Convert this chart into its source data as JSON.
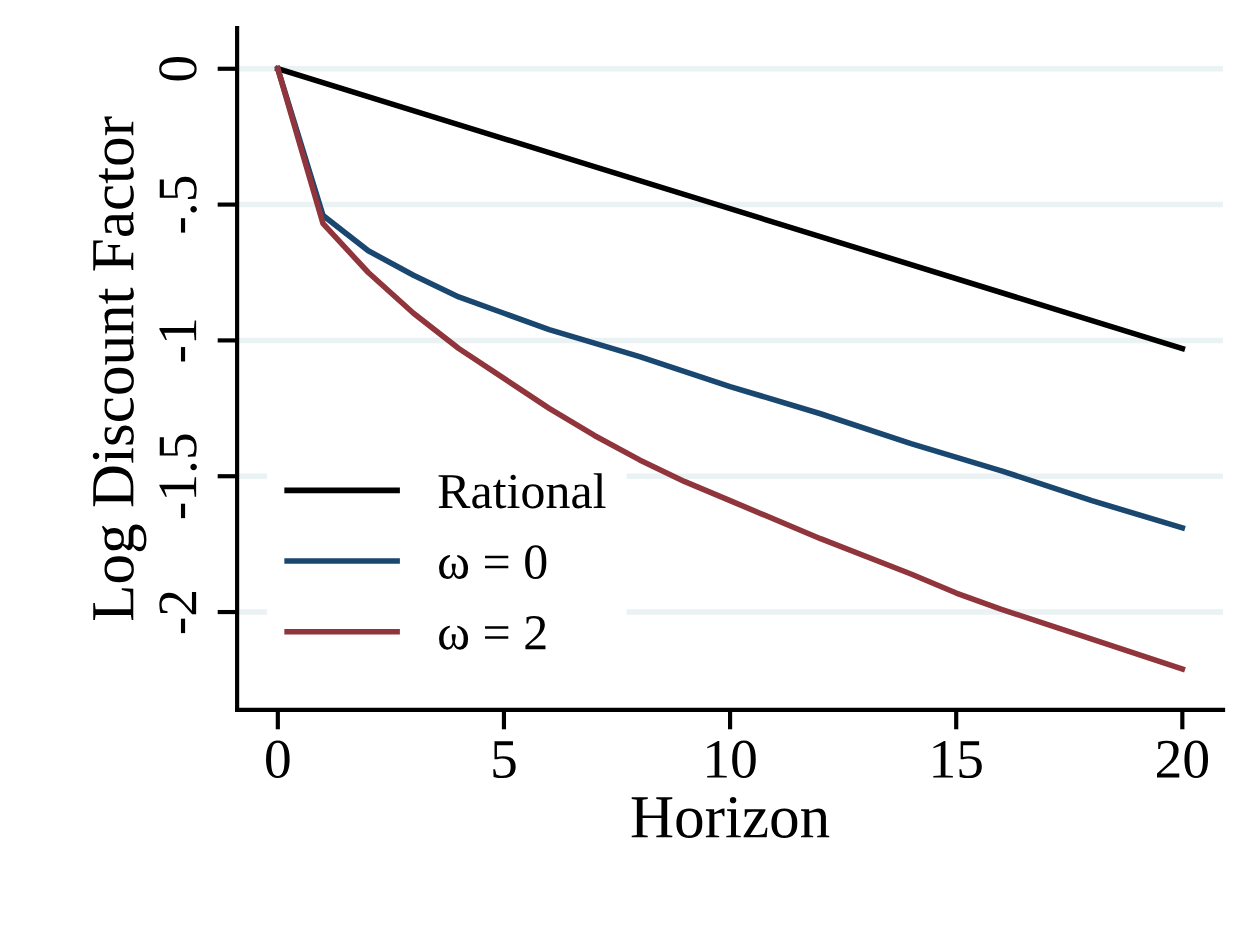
{
  "chart_data": {
    "type": "line",
    "xlabel": "Horizon",
    "ylabel": "Log Discount Factor",
    "xlim": [
      -0.9,
      20.9
    ],
    "xticks": [
      0,
      5,
      10,
      15,
      20
    ],
    "ylim": [
      -2.36,
      0.15
    ],
    "yticks": [
      0,
      {
        "value": -0.5,
        "label": "-.5"
      },
      {
        "value": -1,
        "label": "-1"
      },
      {
        "value": -1.5,
        "label": "-1.5"
      },
      {
        "value": -2,
        "label": "-2"
      }
    ],
    "grid": "y",
    "legend": "bottom left",
    "marker": "none",
    "line_style": "solid",
    "series": [
      {
        "name": "Rational",
        "color": "#000000",
        "x": [
          0,
          20
        ],
        "values": [
          0,
          -1.03
        ]
      },
      {
        "name": "ω = 0",
        "color": "#1a476f",
        "x": [
          0,
          1,
          2,
          3,
          4,
          5,
          6,
          7,
          8,
          10,
          12,
          14,
          16,
          18,
          20
        ],
        "values": [
          0,
          -0.54,
          -0.67,
          -0.76,
          -0.84,
          -0.9,
          -0.96,
          -1.01,
          -1.06,
          -1.17,
          -1.27,
          -1.38,
          -1.48,
          -1.59,
          -1.69
        ]
      },
      {
        "name": "ω = 2",
        "color": "#90353b",
        "x": [
          0,
          1,
          2,
          3,
          4,
          5,
          6,
          7,
          8,
          9,
          10,
          12,
          14,
          15,
          16,
          18,
          20
        ],
        "values": [
          0,
          -0.57,
          -0.75,
          -0.9,
          -1.03,
          -1.14,
          -1.25,
          -1.35,
          -1.44,
          -1.52,
          -1.59,
          -1.73,
          -1.86,
          -1.93,
          -1.99,
          -2.1,
          -2.21
        ]
      }
    ]
  }
}
